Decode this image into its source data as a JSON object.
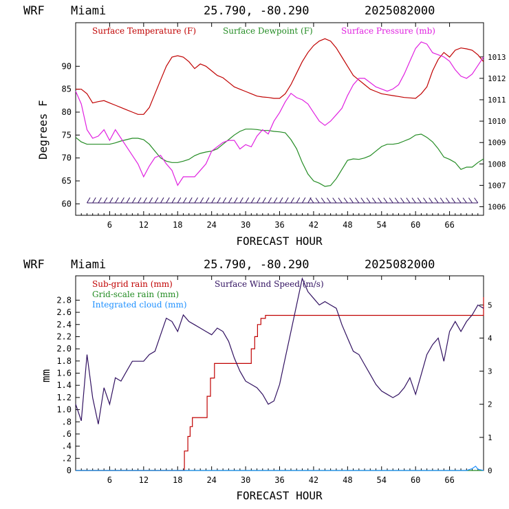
{
  "chart_data": [
    {
      "type": "line",
      "header": {
        "model": "WRF",
        "location": "Miami",
        "coords": "25.790, -80.290",
        "init": "2025082000"
      },
      "xlabel": "FORECAST HOUR",
      "ylabel": "Degrees F",
      "x_ticks": [
        "6",
        "12",
        "18",
        "24",
        "30",
        "36",
        "42",
        "48",
        "54",
        "60",
        "66"
      ],
      "y_ticks": [
        "60",
        "65",
        "70",
        "75",
        "80",
        "85",
        "90"
      ],
      "y2_ticks": [
        "1006",
        "1007",
        "1008",
        "1009",
        "1010",
        "1011",
        "1012",
        "1013"
      ],
      "xlim": [
        0,
        72
      ],
      "ylim": [
        57.5,
        99.5
      ],
      "y2lim": [
        1005.6,
        1014.6
      ],
      "colors": {
        "temperature": "#c00000",
        "dewpoint": "#228b22",
        "pressure": "#e020e0",
        "wind": "#301060"
      },
      "series": [
        {
          "name": "Surface Temperature (F)",
          "axis": "left",
          "color": "#c00000",
          "x": [
            0,
            1,
            2,
            3,
            4,
            5,
            6,
            7,
            8,
            9,
            10,
            11,
            12,
            13,
            14,
            15,
            16,
            17,
            18,
            19,
            20,
            21,
            22,
            23,
            24,
            25,
            26,
            27,
            28,
            29,
            30,
            31,
            32,
            33,
            34,
            35,
            36,
            37,
            38,
            39,
            40,
            41,
            42,
            43,
            44,
            45,
            46,
            47,
            48,
            49,
            50,
            51,
            52,
            53,
            54,
            55,
            56,
            57,
            58,
            59,
            60,
            61,
            62,
            63,
            64,
            65,
            66,
            67,
            68,
            69,
            70,
            71,
            72
          ],
          "values": [
            85,
            85,
            84,
            82,
            82.3,
            82.5,
            82,
            81.5,
            81,
            80.5,
            80,
            79.5,
            79.5,
            81,
            84,
            87,
            90,
            92,
            92.3,
            92,
            91,
            89.5,
            90.5,
            90,
            89,
            88,
            87.5,
            86.5,
            85.5,
            85,
            84.5,
            84,
            83.5,
            83.3,
            83.2,
            83,
            83,
            84,
            86,
            88.5,
            91,
            93,
            94.5,
            95.5,
            96,
            95.5,
            94,
            92,
            90,
            88,
            87,
            86,
            85,
            84.5,
            84,
            83.8,
            83.6,
            83.4,
            83.2,
            83.1,
            83,
            84,
            85.5,
            89,
            91.5,
            93,
            92,
            93.5,
            94,
            93.8,
            93.5,
            92.5,
            91
          ]
        },
        {
          "name": "Surface Dewpoint (F)",
          "axis": "left",
          "color": "#228b22",
          "x": [
            0,
            1,
            2,
            3,
            4,
            5,
            6,
            7,
            8,
            9,
            10,
            11,
            12,
            13,
            14,
            15,
            16,
            17,
            18,
            19,
            20,
            21,
            22,
            23,
            24,
            25,
            26,
            27,
            28,
            29,
            30,
            31,
            32,
            33,
            34,
            35,
            36,
            37,
            38,
            39,
            40,
            41,
            42,
            43,
            44,
            45,
            46,
            47,
            48,
            49,
            50,
            51,
            52,
            53,
            54,
            55,
            56,
            57,
            58,
            59,
            60,
            61,
            62,
            63,
            64,
            65,
            66,
            67,
            68,
            69,
            70,
            71,
            72
          ],
          "values": [
            74.5,
            73.5,
            73,
            73,
            73,
            73,
            73,
            73.3,
            73.7,
            74,
            74.3,
            74.3,
            74,
            73,
            71.5,
            70,
            69.3,
            69,
            69,
            69.3,
            69.7,
            70.5,
            71,
            71.3,
            71.5,
            72,
            73,
            74,
            75,
            75.8,
            76.3,
            76.3,
            76.2,
            76,
            76,
            75.8,
            75.7,
            75.5,
            74,
            72,
            69,
            66.5,
            65,
            64.5,
            63.8,
            64,
            65.5,
            67.5,
            69.5,
            69.8,
            69.7,
            70,
            70.5,
            71.5,
            72.5,
            73,
            73,
            73.2,
            73.7,
            74.2,
            75,
            75.2,
            74.5,
            73.5,
            72,
            70.2,
            69.7,
            69,
            67.5,
            68,
            68,
            69,
            69.8
          ]
        },
        {
          "name": "Surface Pressure (mb)",
          "axis": "right",
          "color": "#e020e0",
          "x": [
            0,
            1,
            2,
            3,
            4,
            5,
            6,
            7,
            8,
            9,
            10,
            11,
            12,
            13,
            14,
            15,
            16,
            17,
            18,
            19,
            20,
            21,
            22,
            23,
            24,
            25,
            26,
            27,
            28,
            29,
            30,
            31,
            32,
            33,
            34,
            35,
            36,
            37,
            38,
            39,
            40,
            41,
            42,
            43,
            44,
            45,
            46,
            47,
            48,
            49,
            50,
            51,
            52,
            53,
            54,
            55,
            56,
            57,
            58,
            59,
            60,
            61,
            62,
            63,
            64,
            65,
            66,
            67,
            68,
            69,
            70,
            71,
            72
          ],
          "values": [
            1011.4,
            1010.8,
            1009.6,
            1009.2,
            1009.3,
            1009.6,
            1009.1,
            1009.6,
            1009.2,
            1008.8,
            1008.4,
            1008.0,
            1007.4,
            1007.9,
            1008.3,
            1008.4,
            1008.0,
            1007.7,
            1007.0,
            1007.4,
            1007.4,
            1007.4,
            1007.7,
            1008.0,
            1008.6,
            1008.8,
            1009.0,
            1009.1,
            1009.1,
            1008.7,
            1008.9,
            1008.8,
            1009.3,
            1009.6,
            1009.4,
            1010.0,
            1010.4,
            1010.9,
            1011.3,
            1011.1,
            1011.0,
            1010.8,
            1010.4,
            1010.0,
            1009.8,
            1010.0,
            1010.3,
            1010.6,
            1011.2,
            1011.7,
            1012.0,
            1012.0,
            1011.8,
            1011.6,
            1011.5,
            1011.4,
            1011.5,
            1011.7,
            1012.2,
            1012.8,
            1013.4,
            1013.7,
            1013.6,
            1013.2,
            1013.1,
            1013.0,
            1012.8,
            1012.4,
            1012.1,
            1012.0,
            1012.2,
            1012.6,
            1013.0
          ]
        }
      ],
      "wind_barbs": {
        "y": 60.2,
        "x": [
          2,
          3,
          4,
          5,
          6,
          7,
          8,
          9,
          10,
          11,
          12,
          13,
          14,
          15,
          16,
          17,
          18,
          19,
          20,
          21,
          22,
          23,
          24,
          25,
          26,
          27,
          28,
          29,
          30,
          31,
          32,
          33,
          34,
          35,
          36,
          37,
          38,
          39,
          40,
          41,
          42,
          43,
          44,
          45,
          46,
          47,
          48,
          49,
          50,
          51,
          52,
          53,
          54,
          55,
          56,
          57,
          58,
          59,
          60,
          61,
          62,
          63,
          64,
          65,
          66,
          67,
          68,
          69,
          70,
          71
        ]
      }
    },
    {
      "type": "line",
      "header": {
        "model": "WRF",
        "location": "Miami",
        "coords": "25.790, -80.290",
        "init": "2025082000"
      },
      "xlabel": "FORECAST HOUR",
      "ylabel": "mm",
      "x_ticks": [
        "6",
        "12",
        "18",
        "24",
        "30",
        "36",
        "42",
        "48",
        "54",
        "60",
        "66"
      ],
      "y_ticks": [
        "0",
        ".2",
        ".4",
        ".6",
        ".8",
        "1.0",
        "1.2",
        "1.4",
        "1.6",
        "1.8",
        "2.0",
        "2.2",
        "2.4",
        "2.6",
        "2.8"
      ],
      "y_tick_values": [
        0,
        0.2,
        0.4,
        0.6,
        0.8,
        1.0,
        1.2,
        1.4,
        1.6,
        1.8,
        2.0,
        2.2,
        2.4,
        2.6,
        2.8
      ],
      "y2_ticks": [
        "0",
        "1",
        "2",
        "3",
        "4",
        "5"
      ],
      "xlim": [
        0,
        72
      ],
      "ylim": [
        0,
        3.2
      ],
      "y2lim": [
        0,
        5.88
      ],
      "series": [
        {
          "name": "Sub-grid rain (mm)",
          "axis": "left",
          "color": "#c00000",
          "step": true,
          "x": [
            0,
            18.9,
            19.2,
            19.8,
            20.2,
            20.6,
            22.7,
            23.2,
            23.8,
            24.5,
            30.4,
            31.0,
            31.6,
            32.1,
            32.7,
            33.5,
            60.8,
            72
          ],
          "values": [
            0,
            0,
            0.32,
            0.56,
            0.72,
            0.87,
            0.87,
            1.22,
            1.52,
            1.76,
            1.76,
            2.0,
            2.2,
            2.4,
            2.5,
            2.55,
            2.55,
            2.85
          ]
        },
        {
          "name": "Grid-scale rain (mm)",
          "axis": "left",
          "color": "#228b22",
          "x": [
            0,
            72
          ],
          "values": [
            0,
            0
          ]
        },
        {
          "name": "Integrated cloud (mm)",
          "axis": "left",
          "color": "#1e90ff",
          "x": [
            0,
            69,
            70,
            70.6,
            71,
            72
          ],
          "values": [
            0,
            0,
            0.03,
            0.07,
            0.02,
            0
          ]
        },
        {
          "name": "Surface Wind Speed (m/s)",
          "axis": "right",
          "color": "#301060",
          "x": [
            0,
            1,
            2,
            3,
            4,
            5,
            6,
            7,
            8,
            9,
            10,
            11,
            12,
            13,
            14,
            15,
            16,
            17,
            18,
            19,
            20,
            21,
            22,
            23,
            24,
            25,
            26,
            27,
            28,
            29,
            30,
            31,
            32,
            33,
            34,
            35,
            36,
            37,
            38,
            39,
            40,
            41,
            42,
            43,
            44,
            45,
            46,
            47,
            48,
            49,
            50,
            51,
            52,
            53,
            54,
            55,
            56,
            57,
            58,
            59,
            60,
            61,
            62,
            63,
            64,
            65,
            66,
            67,
            68,
            69,
            70,
            71,
            72
          ],
          "values": [
            2.0,
            1.5,
            3.5,
            2.2,
            1.4,
            2.5,
            2.0,
            2.8,
            2.7,
            3.0,
            3.3,
            3.3,
            3.3,
            3.5,
            3.6,
            4.1,
            4.6,
            4.5,
            4.2,
            4.7,
            4.5,
            4.4,
            4.3,
            4.2,
            4.1,
            4.3,
            4.2,
            3.9,
            3.4,
            3.0,
            2.7,
            2.6,
            2.5,
            2.3,
            2.0,
            2.1,
            2.6,
            3.4,
            4.2,
            5.0,
            5.8,
            5.4,
            5.2,
            5.0,
            5.1,
            5.0,
            4.9,
            4.4,
            4.0,
            3.6,
            3.5,
            3.2,
            2.9,
            2.6,
            2.4,
            2.3,
            2.2,
            2.3,
            2.5,
            2.8,
            2.3,
            2.9,
            3.5,
            3.8,
            4.0,
            3.3,
            4.2,
            4.5,
            4.2,
            4.5,
            4.7,
            5.0,
            4.9
          ]
        }
      ]
    }
  ]
}
